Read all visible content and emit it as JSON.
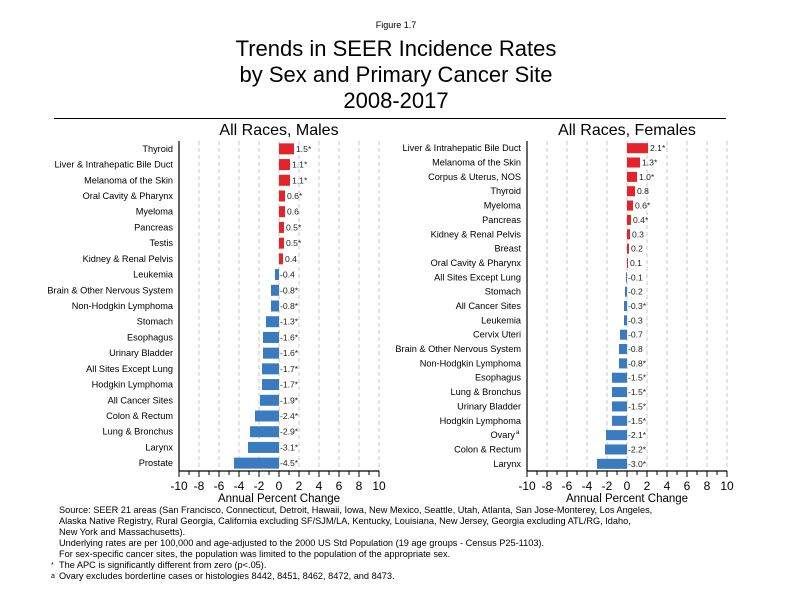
{
  "figure_label": "Figure 1.7",
  "title_lines": [
    "Trends in SEER Incidence Rates",
    "by Sex and Primary Cancer Site",
    "2008-2017"
  ],
  "colors": {
    "positive": "#e3242b",
    "negative": "#3a7bbf",
    "grid": "#bbbbbb",
    "axis": "#000000"
  },
  "chart_data": [
    {
      "type": "bar",
      "orientation": "horizontal",
      "title": "All Races, Males",
      "xlabel": "Annual Percent Change",
      "ylabel": "",
      "xlim": [
        -10,
        10
      ],
      "xticks": [
        -10,
        -8,
        -6,
        -4,
        -2,
        0,
        2,
        4,
        6,
        8,
        10
      ],
      "grid": "vertical dashed",
      "categories": [
        "Thyroid",
        "Liver & Intrahepatic Bile Duct",
        "Melanoma of the Skin",
        "Oral Cavity & Pharynx",
        "Myeloma",
        "Pancreas",
        "Testis",
        "Kidney & Renal Pelvis",
        "Leukemia",
        "Brain & Other Nervous System",
        "Non-Hodgkin Lymphoma",
        "Stomach",
        "Esophagus",
        "Urinary Bladder",
        "All Sites Except Lung",
        "Hodgkin Lymphoma",
        "All Cancer Sites",
        "Colon & Rectum",
        "Lung & Bronchus",
        "Larynx",
        "Prostate"
      ],
      "category_marks": [
        "",
        "",
        "",
        "",
        "",
        "",
        "",
        "",
        "",
        "",
        "",
        "",
        "",
        "",
        "",
        "",
        "",
        "",
        "",
        "",
        ""
      ],
      "values": [
        1.5,
        1.1,
        1.1,
        0.6,
        0.6,
        0.5,
        0.5,
        0.4,
        -0.4,
        -0.8,
        -0.8,
        -1.3,
        -1.6,
        -1.6,
        -1.7,
        -1.7,
        -1.9,
        -2.4,
        -2.9,
        -3.1,
        -4.5
      ],
      "significant": [
        true,
        true,
        true,
        true,
        false,
        true,
        true,
        false,
        false,
        true,
        true,
        true,
        true,
        true,
        true,
        true,
        true,
        true,
        true,
        true,
        true
      ],
      "labels": [
        "1.5*",
        "1.1*",
        "1.1*",
        "0.6*",
        "0.6",
        "0.5*",
        "0.5*",
        "0.4",
        "-0.4",
        "-0.8*",
        "-0.8*",
        "-1.3*",
        "-1.6*",
        "-1.6*",
        "-1.7*",
        "-1.7*",
        "-1.9*",
        "-2.4*",
        "-2.9*",
        "-3.1*",
        "-4.5*"
      ]
    },
    {
      "type": "bar",
      "orientation": "horizontal",
      "title": "All Races, Females",
      "xlabel": "Annual Percent Change",
      "ylabel": "",
      "xlim": [
        -10,
        10
      ],
      "xticks": [
        -10,
        -8,
        -6,
        -4,
        -2,
        0,
        2,
        4,
        6,
        8,
        10
      ],
      "grid": "vertical dashed",
      "categories": [
        "Liver & Intrahepatic Bile Duct",
        "Melanoma of the Skin",
        "Corpus & Uterus, NOS",
        "Thyroid",
        "Myeloma",
        "Pancreas",
        "Kidney & Renal Pelvis",
        "Breast",
        "Oral Cavity & Pharynx",
        "All Sites Except Lung",
        "Stomach",
        "All Cancer Sites",
        "Leukemia",
        "Cervix Uteri",
        "Brain & Other Nervous System",
        "Non-Hodgkin Lymphoma",
        "Esophagus",
        "Lung & Bronchus",
        "Urinary Bladder",
        "Hodgkin Lymphoma",
        "Ovary",
        "Colon & Rectum",
        "Larynx"
      ],
      "category_marks": [
        "",
        "",
        "",
        "",
        "",
        "",
        "",
        "",
        "",
        "",
        "",
        "",
        "",
        "",
        "",
        "",
        "",
        "",
        "",
        "",
        "a",
        "",
        ""
      ],
      "values": [
        2.1,
        1.3,
        1.0,
        0.8,
        0.6,
        0.4,
        0.3,
        0.2,
        0.1,
        -0.1,
        -0.2,
        -0.3,
        -0.3,
        -0.7,
        -0.8,
        -0.8,
        -1.5,
        -1.5,
        -1.5,
        -1.5,
        -2.1,
        -2.2,
        -3.0
      ],
      "significant": [
        true,
        true,
        true,
        false,
        true,
        true,
        false,
        false,
        false,
        false,
        false,
        true,
        false,
        false,
        false,
        true,
        true,
        true,
        true,
        true,
        true,
        true,
        true
      ],
      "labels": [
        "2.1*",
        "1.3*",
        "1.0*",
        "0.8",
        "0.6*",
        "0.4*",
        "0.3",
        "0.2",
        "0.1",
        "-0.1",
        "-0.2",
        "-0.3*",
        "-0.3",
        "-0.7",
        "-0.8",
        "-0.8*",
        "-1.5*",
        "-1.5*",
        "-1.5*",
        "-1.5*",
        "-2.1*",
        "-2.2*",
        "-3.0*"
      ]
    }
  ],
  "footnotes": {
    "source_lines": [
      "Source: SEER 21 areas (San Francisco, Connecticut, Detroit, Hawaii, Iowa, New Mexico, Seattle, Utah, Atlanta, San Jose-Monterey, Los Angeles,",
      "Alaska Native Registry, Rural Georgia, California excluding SF/SJM/LA, Kentucky, Louisiana, New Jersey, Georgia excluding ATL/RG, Idaho,",
      "New York and Massachusetts).",
      "Underlying rates are per 100,000 and age-adjusted to the 2000 US Std Population (19 age groups - Census P25-1103).",
      "For sex-specific cancer sites, the population was limited to the population of the appropriate sex."
    ],
    "notes": [
      {
        "mark": "*",
        "text": "The APC is significantly different from zero (p<.05)."
      },
      {
        "mark": "a",
        "text": "Ovary excludes borderline cases or histologies 8442, 8451, 8462, 8472, and 8473."
      }
    ]
  }
}
